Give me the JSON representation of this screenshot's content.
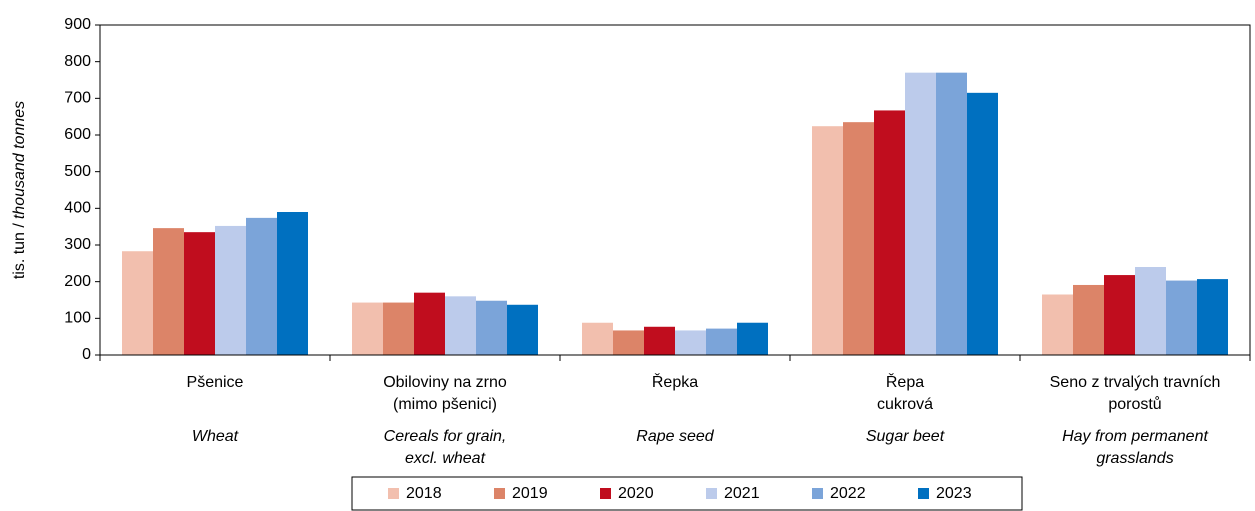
{
  "chart_data": {
    "type": "bar",
    "y_label": "tis. tun /",
    "y_label_en": "thousand tonnes",
    "categories": [
      [
        "Pšenice"
      ],
      [
        "Obiloviny na zrno",
        "(mimo pšenici)"
      ],
      [
        "Řepka"
      ],
      [
        "Řepa",
        "cukrová"
      ],
      [
        "Seno z trvalých travních",
        "porostů"
      ]
    ],
    "categories_en": [
      [
        "Wheat"
      ],
      [
        "Cereals for grain,",
        "excl. wheat"
      ],
      [
        "Rape seed"
      ],
      [
        "Sugar beet"
      ],
      [
        "Hay from permanent",
        "grasslands"
      ]
    ],
    "series": [
      {
        "name": "2018",
        "color": "#f2bfae",
        "values": [
          283,
          143,
          88,
          624,
          165
        ]
      },
      {
        "name": "2019",
        "color": "#dc8468",
        "values": [
          346,
          143,
          67,
          635,
          191
        ]
      },
      {
        "name": "2020",
        "color": "#c00d1e",
        "values": [
          335,
          170,
          77,
          667,
          218
        ]
      },
      {
        "name": "2021",
        "color": "#bccbeb",
        "values": [
          352,
          160,
          67,
          770,
          240
        ]
      },
      {
        "name": "2022",
        "color": "#7ba4d9",
        "values": [
          374,
          148,
          72,
          770,
          203
        ]
      },
      {
        "name": "2023",
        "color": "#0070c0",
        "values": [
          390,
          137,
          88,
          715,
          207
        ]
      }
    ],
    "ylim": [
      0,
      900
    ],
    "yticks": [
      0,
      100,
      200,
      300,
      400,
      500,
      600,
      700,
      800,
      900
    ],
    "legend": "bottom"
  }
}
